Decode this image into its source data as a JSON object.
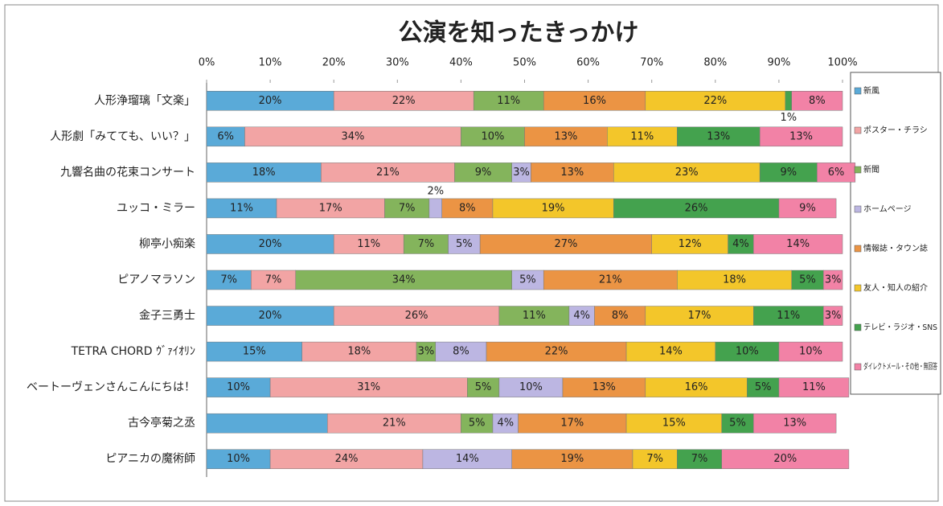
{
  "chart_data": {
    "type": "stacked-bar-horizontal",
    "title": "公演を知ったきっかけ",
    "categories": [
      "人形浄瑠璃「文楽」",
      "人形劇「みてても、いい？」",
      "九響名曲の花束コンサート",
      "ユッコ・ミラー",
      "柳亭小痴楽",
      "ピアノマラソン",
      "金子三勇士",
      "TETRA CHORD ｳﾞｧｲｵﾘﾝ",
      "ベートーヴェンさんこんにちは！",
      "古今亭菊之丞",
      "ピアニカの魔術師"
    ],
    "xlim": [
      0,
      100
    ],
    "xticks": [
      {
        "value": 0,
        "label": "0%"
      },
      {
        "value": 10,
        "label": "10%"
      },
      {
        "value": 20,
        "label": "20%"
      },
      {
        "value": 30,
        "label": "30%"
      },
      {
        "value": 40,
        "label": "40%"
      },
      {
        "value": 50,
        "label": "50%"
      },
      {
        "value": 60,
        "label": "60%"
      },
      {
        "value": 70,
        "label": "70%"
      },
      {
        "value": 80,
        "label": "80%"
      },
      {
        "value": 90,
        "label": "90%"
      },
      {
        "value": 100,
        "label": "100%"
      }
    ],
    "legend": "right",
    "series": [
      {
        "name": "新風",
        "color": "#5aaad8",
        "values": [
          20,
          6,
          18,
          11,
          20,
          7,
          20,
          15,
          10,
          19,
          10
        ],
        "value_labels": [
          "20%",
          "6%",
          "18%",
          "11%",
          "20%",
          "7%",
          "20%",
          "15%",
          "10%",
          null,
          "10%"
        ]
      },
      {
        "name": "ポスター・チラシ",
        "color": "#f2a4a4",
        "values": [
          22,
          34,
          21,
          17,
          11,
          7,
          26,
          18,
          31,
          21,
          24
        ],
        "value_labels": [
          "22%",
          "34%",
          "21%",
          "17%",
          "11%",
          "7%",
          "26%",
          "18%",
          "31%",
          "21%",
          "24%"
        ]
      },
      {
        "name": "新聞",
        "color": "#84b45c",
        "values": [
          11,
          10,
          9,
          7,
          7,
          34,
          11,
          3,
          5,
          5,
          0
        ],
        "value_labels": [
          "11%",
          "10%",
          "9%",
          "7%",
          "7%",
          "34%",
          "11%",
          "3%",
          "5%",
          "5%",
          null
        ]
      },
      {
        "name": "ホームページ",
        "color": "#bcb6e2",
        "values": [
          0,
          0,
          3,
          2,
          5,
          5,
          4,
          8,
          10,
          4,
          14
        ],
        "value_labels": [
          null,
          null,
          "3%",
          "2%",
          "5%",
          "5%",
          "4%",
          "8%",
          "10%",
          "4%",
          "14%"
        ]
      },
      {
        "name": "情報誌・タウン誌",
        "color": "#eb9444",
        "values": [
          16,
          13,
          13,
          8,
          27,
          21,
          8,
          22,
          13,
          17,
          19
        ],
        "value_labels": [
          "16%",
          "13%",
          "13%",
          "8%",
          "27%",
          "21%",
          "8%",
          "22%",
          "13%",
          "17%",
          "19%"
        ]
      },
      {
        "name": "友人・知人の紹介",
        "color": "#f3c62a",
        "values": [
          22,
          11,
          23,
          19,
          12,
          18,
          17,
          14,
          16,
          15,
          7
        ],
        "value_labels": [
          "22%",
          "11%",
          "23%",
          "19%",
          "12%",
          "18%",
          "17%",
          "14%",
          "16%",
          "15%",
          "7%"
        ]
      },
      {
        "name": "テレビ・ラジオ・SNS",
        "color": "#44a24e",
        "values": [
          1,
          13,
          9,
          26,
          4,
          5,
          11,
          10,
          5,
          5,
          7
        ],
        "value_labels": [
          "1%",
          "13%",
          "9%",
          "26%",
          "4%",
          "5%",
          "11%",
          "10%",
          "5%",
          "5%",
          "7%"
        ]
      },
      {
        "name": "ダイレクトメール・その他・無回答",
        "color": "#f282a6",
        "values": [
          8,
          13,
          6,
          9,
          14,
          3,
          3,
          10,
          11,
          13,
          20
        ],
        "value_labels": [
          "8%",
          "13%",
          "6%",
          "9%",
          "14%",
          "3%",
          "3%",
          "10%",
          "11%",
          "13%",
          "20%"
        ]
      }
    ]
  }
}
